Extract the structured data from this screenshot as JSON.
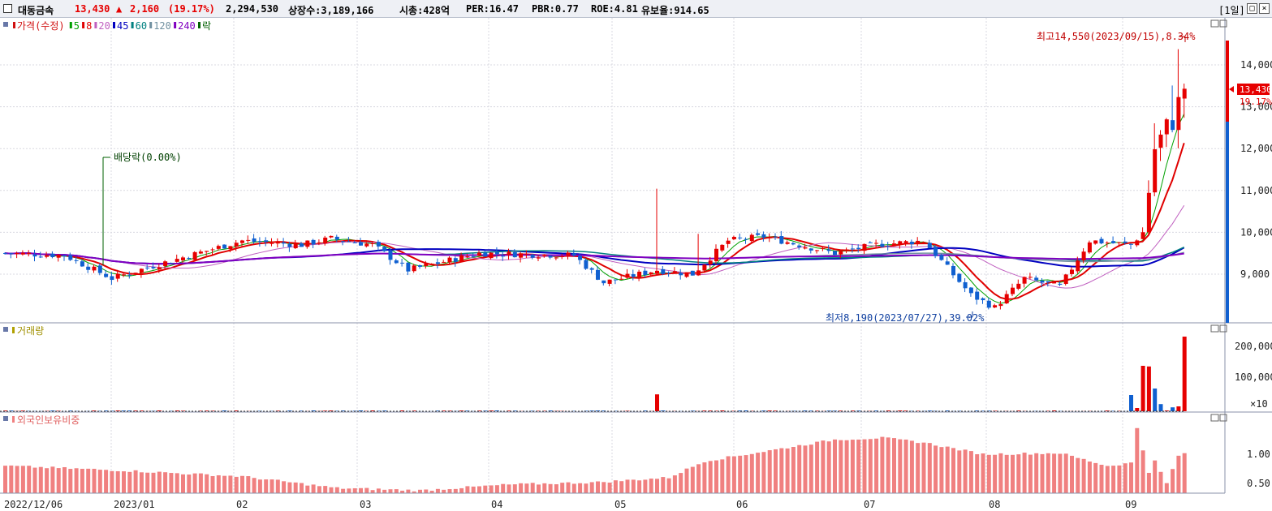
{
  "header": {
    "stock_name": "대동금속",
    "price": "13,430",
    "change_arrow": "▲",
    "change": "2,160",
    "change_pct": "(19.17%)",
    "volume": "2,294,530",
    "listed_shares": "상장수:3,189,166",
    "market_cap": "시총:428억",
    "per": "PER:16.47",
    "pbr": "PBR:0.77",
    "roe": "ROE:4.81",
    "float_ratio": "유보율:914.65",
    "period_button": "[1일]"
  },
  "price_panel": {
    "legend": [
      {
        "label": "가격(수정)",
        "color": "#d01010"
      },
      {
        "label": "5",
        "color": "#00a000"
      },
      {
        "label": "8",
        "color": "#e00000"
      },
      {
        "label": "20",
        "color": "#c060c0"
      },
      {
        "label": "45",
        "color": "#0000c0"
      },
      {
        "label": "60",
        "color": "#008080"
      },
      {
        "label": "120",
        "color": "#7090a0"
      },
      {
        "label": "240",
        "color": "#8000c0"
      },
      {
        "label": "락",
        "color": "#006000"
      }
    ],
    "y_ticks": [
      "14,000",
      "13,000",
      "12,000",
      "11,000",
      "10,000",
      "9,000"
    ],
    "current_price_tag": "13,430",
    "current_pct_tag": "19.17%",
    "high_annotation": "최고14,550(2023/09/15),8.34%",
    "low_annotation": "최저8,190(2023/07/27),39.02%",
    "dividend_annotation": "배당락(0.00%)"
  },
  "volume_panel": {
    "legend": "거래량",
    "y_ticks": [
      "200,000",
      "100,000"
    ],
    "unit": "×10"
  },
  "foreign_panel": {
    "legend": "외국인보유비중",
    "y_ticks": [
      "1.00",
      "0.50"
    ]
  },
  "x_axis": {
    "labels": [
      "2022/12/06",
      "2023/01",
      "02",
      "03",
      "04",
      "05",
      "06",
      "07",
      "08",
      "09"
    ]
  },
  "colors": {
    "up": "#e60000",
    "down": "#1060d0",
    "foreign_bar": "#f08080"
  },
  "chart_data": {
    "type": "candlestick",
    "price_range": [
      8000,
      14800
    ],
    "last_close": 13430,
    "high": {
      "value": 14550,
      "date": "2023/09/15"
    },
    "low": {
      "value": 8190,
      "date": "2023/07/27"
    },
    "volume_range_x10": [
      0,
      230000
    ],
    "foreign_ratio_range": [
      0.3,
      1.6
    ]
  }
}
